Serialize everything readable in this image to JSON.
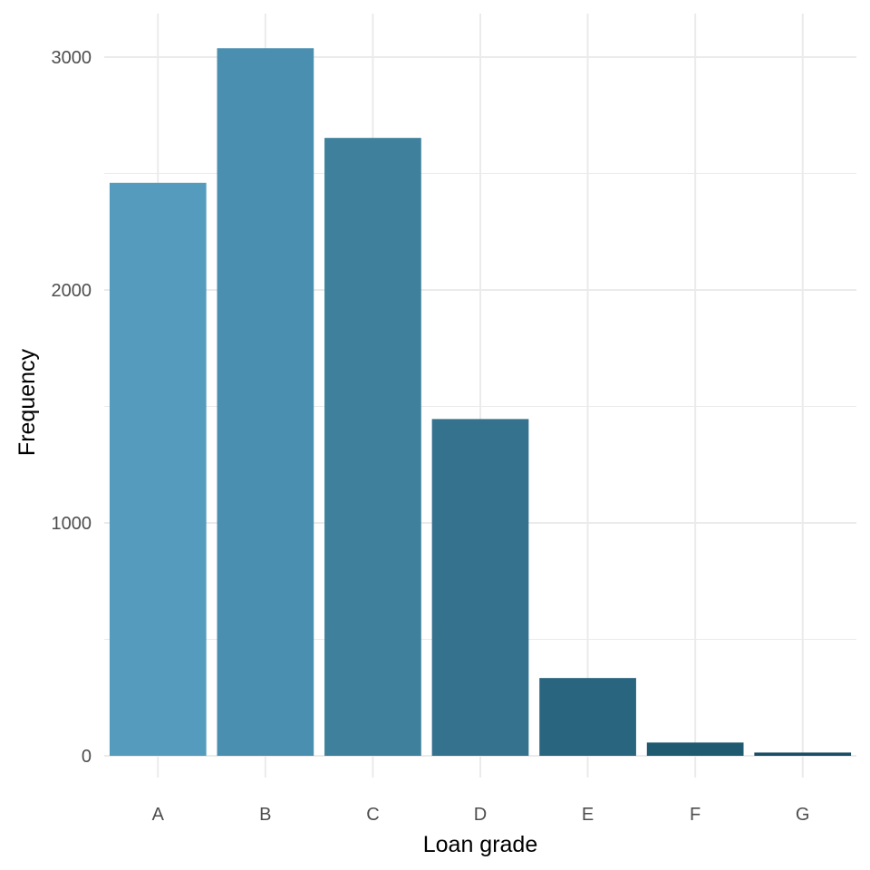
{
  "chart_data": {
    "type": "bar",
    "categories": [
      "A",
      "B",
      "C",
      "D",
      "E",
      "F",
      "G"
    ],
    "values": [
      2460,
      3038,
      2653,
      1446,
      334,
      57,
      14
    ],
    "xlabel": "Loan grade",
    "ylabel": "Frequency",
    "ylim": [
      0,
      3150
    ],
    "yticks": [
      0,
      1000,
      2000,
      3000
    ],
    "yticks_minor": [
      500,
      1500,
      2500
    ],
    "grid": true,
    "legend": "none",
    "bar_colors": [
      "#559bbd",
      "#4a8faf",
      "#3f809c",
      "#34728e",
      "#2a6580",
      "#1f5a71",
      "#184e63"
    ],
    "grid_color": "#ebebeb"
  }
}
